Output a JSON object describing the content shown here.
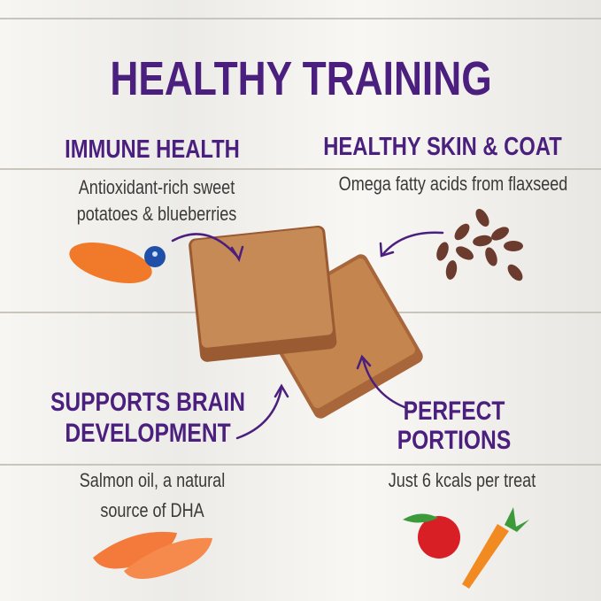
{
  "title": "HEALTHY TRAINING",
  "benefits": {
    "immune": {
      "heading": "IMMUNE HEALTH",
      "line1": "Antioxidant-rich sweet",
      "line2": "potatoes & blueberries"
    },
    "skin": {
      "heading": "HEALTHY SKIN & COAT",
      "line1": "Omega fatty acids from flaxseed"
    },
    "brain": {
      "heading1": "SUPPORTS BRAIN",
      "heading2": "DEVELOPMENT",
      "line1": "Salmon oil, a natural",
      "line2": "source of DHA"
    },
    "portions": {
      "heading1": "PERFECT",
      "heading2": "PORTIONS",
      "line1": "Just 6 kcals per treat"
    }
  },
  "colors": {
    "accent": "#4b1f7e",
    "text": "#3a3a3a",
    "treat": "#b0713c"
  }
}
